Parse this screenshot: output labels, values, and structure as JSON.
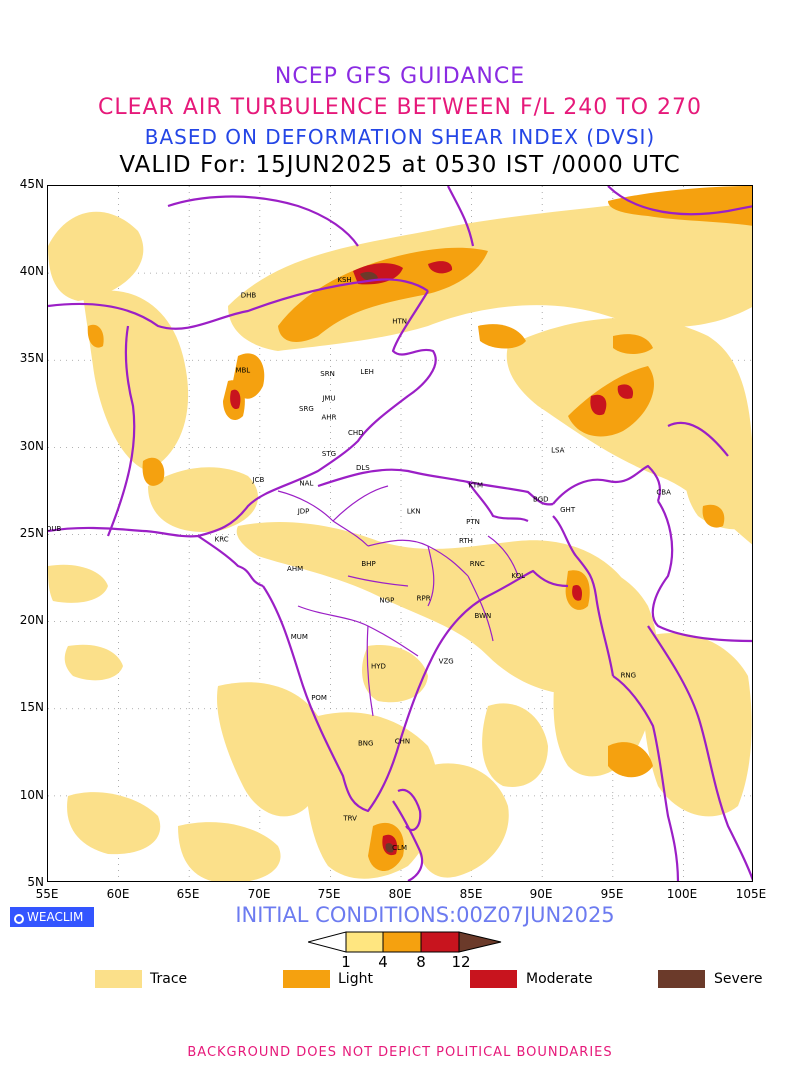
{
  "titles": {
    "line1": "NCEP GFS GUIDANCE",
    "line2": "CLEAR AIR TURBULENCE BETWEEN F/L 240 TO 270",
    "line3": "BASED ON DEFORMATION SHEAR INDEX (DVSI)",
    "line4": "VALID For: 15JUN2025 at 0530 IST /0000 UTC"
  },
  "axes": {
    "lat_labels": [
      "45N",
      "40N",
      "35N",
      "30N",
      "25N",
      "20N",
      "15N",
      "10N",
      "5N"
    ],
    "lon_labels": [
      "55E",
      "60E",
      "65E",
      "70E",
      "75E",
      "80E",
      "85E",
      "90E",
      "95E",
      "100E",
      "105E"
    ]
  },
  "brand": "WEACLIM",
  "initial_conditions": "INITIAL CONDITIONS:00Z07JUN2025",
  "colorbar": {
    "ticks": [
      "1",
      "4",
      "8",
      "12"
    ],
    "colors": [
      "#ffe680",
      "#f5a10f",
      "#c8141e",
      "#6b3a2a"
    ]
  },
  "legend": [
    {
      "label": "Trace",
      "color": "#fbe08a"
    },
    {
      "label": "Light",
      "color": "#f5a10f"
    },
    {
      "label": "Moderate",
      "color": "#c8141e"
    },
    {
      "label": "Severe",
      "color": "#6b3a2a"
    }
  ],
  "stations": [
    {
      "code": "DHB",
      "lon": 69.2,
      "lat": 38.6
    },
    {
      "code": "KSH",
      "lon": 76.0,
      "lat": 39.5
    },
    {
      "code": "HTN",
      "lon": 79.9,
      "lat": 37.1
    },
    {
      "code": "MBL",
      "lon": 68.8,
      "lat": 34.3
    },
    {
      "code": "SRN",
      "lon": 74.8,
      "lat": 34.1
    },
    {
      "code": "LEH",
      "lon": 77.6,
      "lat": 34.2
    },
    {
      "code": "JMU",
      "lon": 74.9,
      "lat": 32.7
    },
    {
      "code": "SRG",
      "lon": 73.3,
      "lat": 32.1
    },
    {
      "code": "AHR",
      "lon": 74.9,
      "lat": 31.6
    },
    {
      "code": "CHD",
      "lon": 76.8,
      "lat": 30.7
    },
    {
      "code": "LSA",
      "lon": 91.1,
      "lat": 29.7
    },
    {
      "code": "STG",
      "lon": 74.9,
      "lat": 29.5
    },
    {
      "code": "DLS",
      "lon": 77.3,
      "lat": 28.7
    },
    {
      "code": "JCB",
      "lon": 69.9,
      "lat": 28.0
    },
    {
      "code": "NAL",
      "lon": 73.3,
      "lat": 27.8
    },
    {
      "code": "KTM",
      "lon": 85.3,
      "lat": 27.7
    },
    {
      "code": "CBA",
      "lon": 98.6,
      "lat": 27.3
    },
    {
      "code": "BGD",
      "lon": 89.9,
      "lat": 26.9
    },
    {
      "code": "GHT",
      "lon": 91.8,
      "lat": 26.3
    },
    {
      "code": "JDP",
      "lon": 73.1,
      "lat": 26.2
    },
    {
      "code": "LKN",
      "lon": 80.9,
      "lat": 26.2
    },
    {
      "code": "PTN",
      "lon": 85.1,
      "lat": 25.6
    },
    {
      "code": "DUB",
      "lon": 55.4,
      "lat": 25.2
    },
    {
      "code": "RTH",
      "lon": 84.6,
      "lat": 24.5
    },
    {
      "code": "KRC",
      "lon": 67.3,
      "lat": 24.6
    },
    {
      "code": "BHP",
      "lon": 77.7,
      "lat": 23.2
    },
    {
      "code": "RNC",
      "lon": 85.4,
      "lat": 23.2
    },
    {
      "code": "AHM",
      "lon": 72.5,
      "lat": 22.9
    },
    {
      "code": "KOL",
      "lon": 88.3,
      "lat": 22.5
    },
    {
      "code": "NGP",
      "lon": 79.0,
      "lat": 21.1
    },
    {
      "code": "RPR",
      "lon": 81.6,
      "lat": 21.2
    },
    {
      "code": "BWN",
      "lon": 85.8,
      "lat": 20.2
    },
    {
      "code": "MUM",
      "lon": 72.8,
      "lat": 19.0
    },
    {
      "code": "HYD",
      "lon": 78.4,
      "lat": 17.3
    },
    {
      "code": "VZG",
      "lon": 83.2,
      "lat": 17.6
    },
    {
      "code": "RNG",
      "lon": 96.1,
      "lat": 16.8
    },
    {
      "code": "POM",
      "lon": 74.2,
      "lat": 15.5
    },
    {
      "code": "CHN",
      "lon": 80.1,
      "lat": 13.0
    },
    {
      "code": "BNG",
      "lon": 77.5,
      "lat": 12.9
    },
    {
      "code": "TRV",
      "lon": 76.4,
      "lat": 8.6
    },
    {
      "code": "CLM",
      "lon": 79.9,
      "lat": 6.9
    }
  ],
  "footer": "BACKGROUND DOES NOT DEPICT POLITICAL BOUNDARIES"
}
